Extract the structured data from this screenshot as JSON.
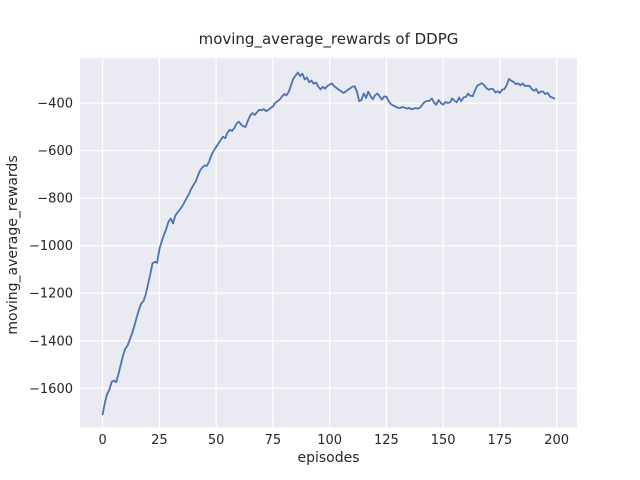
{
  "figure": {
    "background": "#ffffff",
    "plot_background": "#eaeaf2",
    "grid_color": "#ffffff",
    "text_color": "#262626"
  },
  "chart_data": {
    "type": "line",
    "title": "moving_average_rewards of DDPG",
    "xlabel": "episodes",
    "ylabel": "moving_average_rewards",
    "grid": true,
    "legend_position": "none",
    "xticks": [
      0,
      25,
      50,
      75,
      100,
      125,
      150,
      175,
      200
    ],
    "yticks": [
      -400,
      -600,
      -800,
      -1000,
      -1200,
      -1400,
      -1600
    ],
    "xlim": [
      -9.95,
      208.95
    ],
    "ylim": [
      -1765,
      -210
    ],
    "x_is_index": true,
    "x_range": [
      0,
      199
    ],
    "series": [
      {
        "name": "moving_average_rewards",
        "color": "#4c72b0",
        "values": [
          -1710,
          -1660,
          -1625,
          -1605,
          -1572,
          -1568,
          -1574,
          -1540,
          -1500,
          -1463,
          -1433,
          -1420,
          -1395,
          -1368,
          -1337,
          -1303,
          -1270,
          -1243,
          -1233,
          -1205,
          -1163,
          -1120,
          -1074,
          -1068,
          -1072,
          -1015,
          -983,
          -955,
          -930,
          -900,
          -886,
          -906,
          -874,
          -860,
          -848,
          -835,
          -818,
          -800,
          -783,
          -762,
          -745,
          -730,
          -705,
          -683,
          -670,
          -662,
          -664,
          -644,
          -617,
          -600,
          -585,
          -570,
          -555,
          -541,
          -548,
          -524,
          -512,
          -517,
          -505,
          -486,
          -478,
          -490,
          -498,
          -500,
          -474,
          -452,
          -442,
          -450,
          -438,
          -428,
          -430,
          -425,
          -434,
          -429,
          -420,
          -415,
          -400,
          -392,
          -385,
          -372,
          -362,
          -367,
          -352,
          -325,
          -297,
          -284,
          -271,
          -286,
          -276,
          -300,
          -292,
          -312,
          -305,
          -318,
          -313,
          -330,
          -342,
          -331,
          -339,
          -328,
          -322,
          -317,
          -329,
          -336,
          -343,
          -350,
          -357,
          -352,
          -344,
          -338,
          -331,
          -329,
          -351,
          -392,
          -387,
          -359,
          -378,
          -352,
          -370,
          -384,
          -367,
          -359,
          -371,
          -385,
          -372,
          -373,
          -392,
          -404,
          -410,
          -414,
          -419,
          -421,
          -416,
          -419,
          -423,
          -420,
          -426,
          -423,
          -421,
          -423,
          -417,
          -404,
          -394,
          -391,
          -390,
          -380,
          -398,
          -407,
          -387,
          -400,
          -407,
          -395,
          -399,
          -397,
          -380,
          -390,
          -397,
          -376,
          -392,
          -376,
          -374,
          -360,
          -369,
          -371,
          -347,
          -327,
          -321,
          -316,
          -323,
          -336,
          -344,
          -339,
          -341,
          -355,
          -350,
          -357,
          -343,
          -341,
          -323,
          -298,
          -306,
          -310,
          -320,
          -317,
          -325,
          -317,
          -328,
          -327,
          -327,
          -340,
          -348,
          -341,
          -358,
          -351,
          -352,
          -362,
          -357,
          -372,
          -376,
          -381
        ]
      }
    ]
  }
}
